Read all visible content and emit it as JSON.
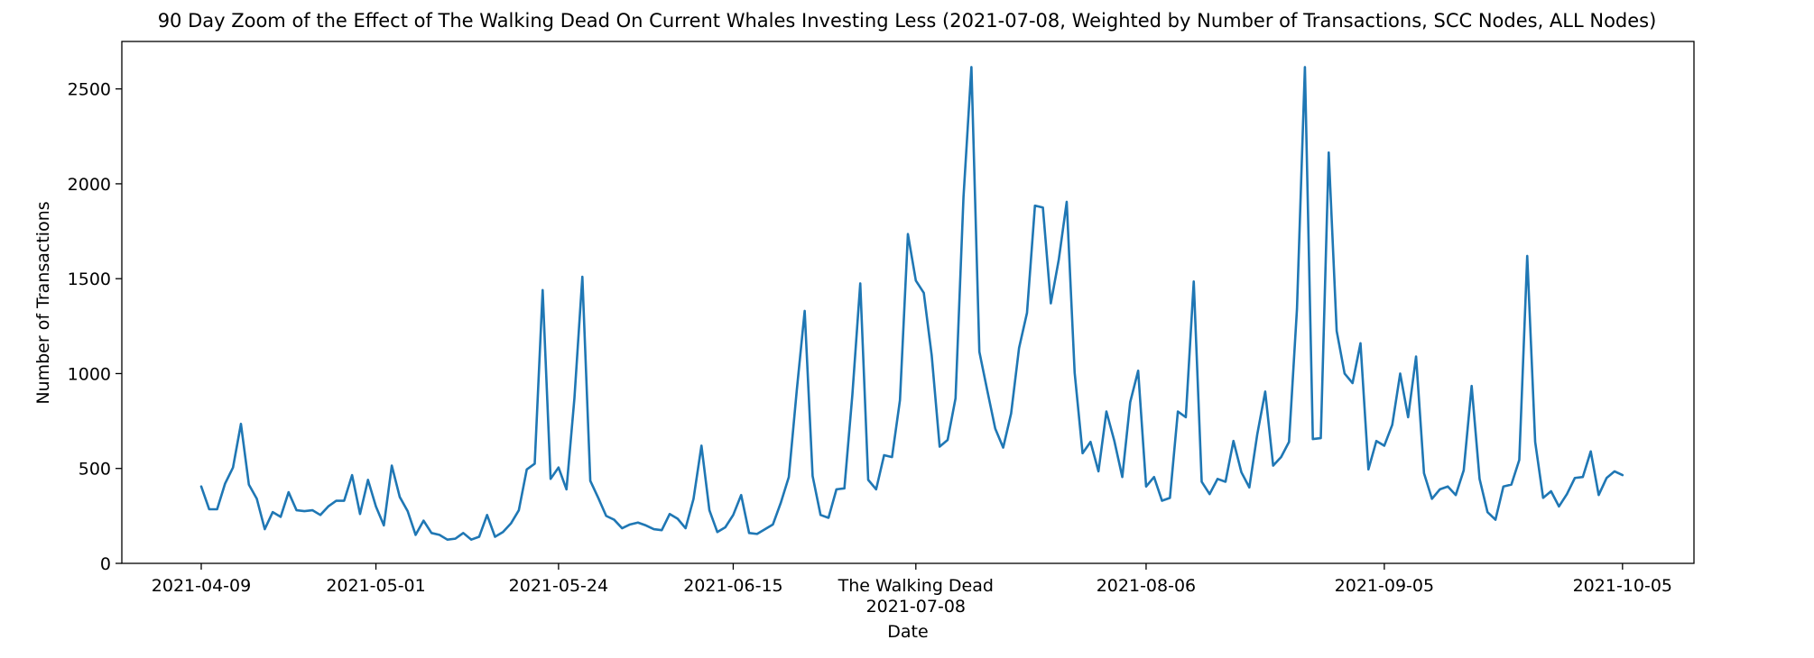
{
  "chart_data": {
    "type": "line",
    "title": "90 Day Zoom of the Effect of The Walking Dead On Current Whales Investing Less (2021-07-08, Weighted by Number of Transactions, SCC Nodes, ALL Nodes)",
    "xlabel": "Date",
    "ylabel": "Number of Transactions",
    "xlim": [
      "2021-03-30",
      "2021-10-14"
    ],
    "ylim": [
      0,
      2750
    ],
    "x_start": "2021-04-09",
    "x_end": "2021-10-05",
    "x_ticks": [
      {
        "date": "2021-04-09",
        "label": "2021-04-09"
      },
      {
        "date": "2021-05-01",
        "label": "2021-05-01"
      },
      {
        "date": "2021-05-24",
        "label": "2021-05-24"
      },
      {
        "date": "2021-06-15",
        "label": "2021-06-15"
      },
      {
        "date": "2021-07-08",
        "label": "The Walking Dead",
        "sublabel": "2021-07-08"
      },
      {
        "date": "2021-08-06",
        "label": "2021-08-06"
      },
      {
        "date": "2021-09-05",
        "label": "2021-09-05"
      },
      {
        "date": "2021-10-05",
        "label": "2021-10-05"
      }
    ],
    "y_ticks": [
      0,
      500,
      1000,
      1500,
      2000,
      2500
    ],
    "grid": false,
    "legend": "none",
    "color": "#1f77b4",
    "series": [
      {
        "values": [
          405,
          285,
          285,
          420,
          505,
          735,
          415,
          340,
          180,
          270,
          245,
          375,
          280,
          275,
          280,
          255,
          300,
          330,
          330,
          465,
          260,
          440,
          300,
          200,
          515,
          350,
          275,
          150,
          225,
          160,
          150,
          125,
          130,
          160,
          125,
          140,
          255,
          140,
          165,
          210,
          280,
          495,
          525,
          1440,
          445,
          505,
          390,
          870,
          1510,
          435,
          345,
          250,
          230,
          185,
          205,
          215,
          200,
          180,
          175,
          260,
          235,
          185,
          340,
          620,
          280,
          165,
          190,
          255,
          360,
          160,
          155,
          180,
          205,
          320,
          455,
          910,
          1330,
          460,
          255,
          240,
          390,
          395,
          885,
          1475,
          440,
          390,
          570,
          560,
          860,
          1735,
          1490,
          1425,
          1095,
          615,
          650,
          870,
          1930,
          2615,
          1115,
          910,
          710,
          610,
          790,
          1135,
          1320,
          1885,
          1875,
          1370,
          1600,
          1905,
          1005,
          580,
          640,
          485,
          800,
          645,
          455,
          850,
          1015,
          405,
          455,
          330,
          345,
          800,
          770,
          1485,
          430,
          365,
          445,
          430,
          645,
          480,
          400,
          680,
          905,
          515,
          560,
          640,
          1340,
          2615,
          655,
          660,
          2165,
          1225,
          1000,
          950,
          1160,
          495,
          645,
          620,
          730,
          1000,
          770,
          1090,
          475,
          340,
          390,
          405,
          360,
          490,
          935,
          445,
          270,
          230,
          405,
          415,
          545,
          1620,
          640,
          345,
          380,
          300,
          365,
          450,
          455,
          590,
          360,
          450,
          485,
          465
        ]
      }
    ]
  }
}
